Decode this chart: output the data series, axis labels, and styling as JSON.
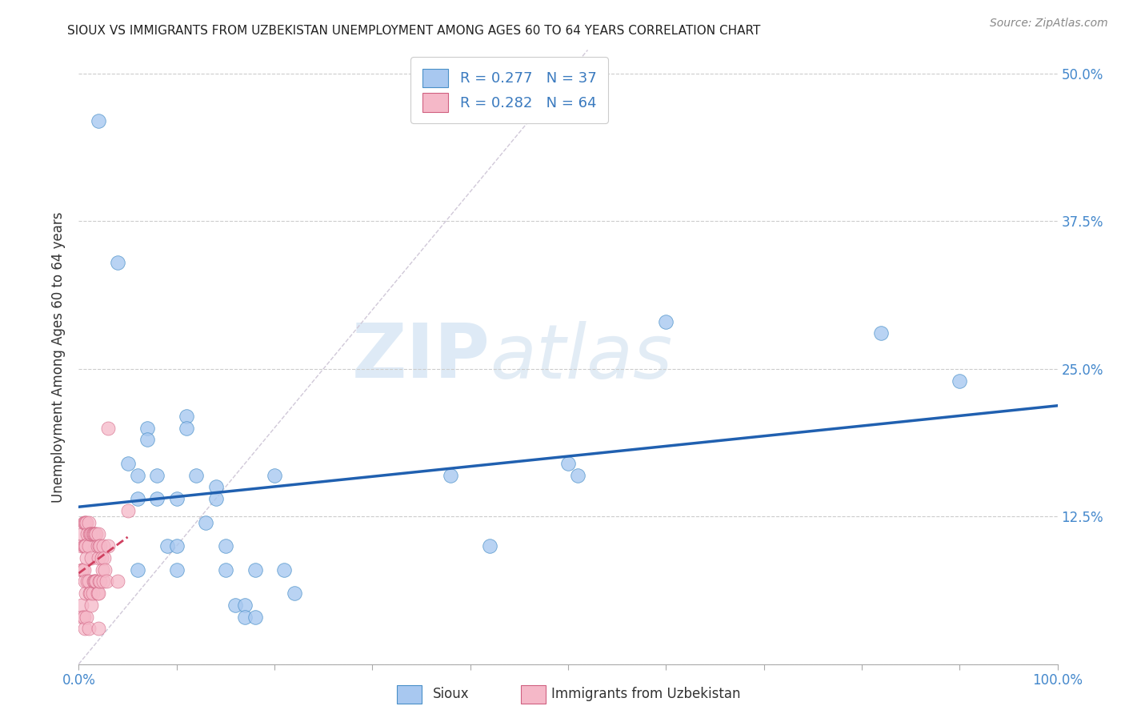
{
  "title": "SIOUX VS IMMIGRANTS FROM UZBEKISTAN UNEMPLOYMENT AMONG AGES 60 TO 64 YEARS CORRELATION CHART",
  "source": "Source: ZipAtlas.com",
  "ylabel": "Unemployment Among Ages 60 to 64 years",
  "xlim": [
    0.0,
    1.0
  ],
  "ylim": [
    0.0,
    0.52
  ],
  "xticks": [
    0.0,
    0.1,
    0.2,
    0.3,
    0.4,
    0.5,
    0.6,
    0.7,
    0.8,
    0.9,
    1.0
  ],
  "xticklabels": [
    "0.0%",
    "",
    "",
    "",
    "",
    "",
    "",
    "",
    "",
    "",
    "100.0%"
  ],
  "yticks": [
    0.0,
    0.125,
    0.25,
    0.375,
    0.5
  ],
  "yticklabels": [
    "",
    "12.5%",
    "25.0%",
    "37.5%",
    "50.0%"
  ],
  "color_sioux": "#a8c8f0",
  "color_uzbek": "#f5b8c8",
  "color_edge_sioux": "#4a90c8",
  "color_edge_uzbek": "#d06080",
  "color_line_sioux": "#2060b0",
  "color_line_uzbek": "#d04060",
  "color_diag": "#d0c8d8",
  "watermark_zip": "ZIP",
  "watermark_atlas": "atlas",
  "sioux_x": [
    0.02,
    0.04,
    0.05,
    0.06,
    0.06,
    0.06,
    0.07,
    0.07,
    0.08,
    0.08,
    0.09,
    0.1,
    0.1,
    0.1,
    0.11,
    0.11,
    0.12,
    0.13,
    0.14,
    0.14,
    0.15,
    0.15,
    0.16,
    0.17,
    0.17,
    0.18,
    0.18,
    0.2,
    0.21,
    0.22,
    0.38,
    0.42,
    0.5,
    0.51,
    0.6,
    0.82,
    0.9
  ],
  "sioux_y": [
    0.46,
    0.34,
    0.17,
    0.16,
    0.14,
    0.08,
    0.2,
    0.19,
    0.16,
    0.14,
    0.1,
    0.1,
    0.08,
    0.14,
    0.21,
    0.2,
    0.16,
    0.12,
    0.15,
    0.14,
    0.1,
    0.08,
    0.05,
    0.05,
    0.04,
    0.08,
    0.04,
    0.16,
    0.08,
    0.06,
    0.16,
    0.1,
    0.17,
    0.16,
    0.29,
    0.28,
    0.24
  ],
  "uzbek_x": [
    0.003,
    0.003,
    0.003,
    0.004,
    0.004,
    0.004,
    0.005,
    0.005,
    0.005,
    0.005,
    0.006,
    0.006,
    0.006,
    0.006,
    0.007,
    0.007,
    0.007,
    0.008,
    0.008,
    0.008,
    0.009,
    0.009,
    0.01,
    0.01,
    0.01,
    0.01,
    0.011,
    0.011,
    0.012,
    0.012,
    0.013,
    0.013,
    0.013,
    0.014,
    0.014,
    0.015,
    0.015,
    0.016,
    0.016,
    0.017,
    0.017,
    0.018,
    0.018,
    0.019,
    0.019,
    0.02,
    0.02,
    0.02,
    0.02,
    0.021,
    0.021,
    0.022,
    0.022,
    0.023,
    0.024,
    0.025,
    0.025,
    0.026,
    0.027,
    0.028,
    0.03,
    0.03,
    0.04,
    0.05
  ],
  "uzbek_y": [
    0.1,
    0.08,
    0.05,
    0.11,
    0.08,
    0.04,
    0.12,
    0.1,
    0.08,
    0.04,
    0.12,
    0.1,
    0.07,
    0.03,
    0.12,
    0.1,
    0.06,
    0.12,
    0.09,
    0.04,
    0.11,
    0.07,
    0.12,
    0.1,
    0.07,
    0.03,
    0.11,
    0.06,
    0.11,
    0.06,
    0.11,
    0.09,
    0.05,
    0.11,
    0.06,
    0.11,
    0.07,
    0.11,
    0.07,
    0.11,
    0.07,
    0.11,
    0.07,
    0.1,
    0.06,
    0.11,
    0.09,
    0.06,
    0.03,
    0.1,
    0.07,
    0.1,
    0.07,
    0.09,
    0.08,
    0.1,
    0.07,
    0.09,
    0.08,
    0.07,
    0.1,
    0.2,
    0.07,
    0.13
  ],
  "background_color": "#ffffff",
  "grid_color": "#cccccc"
}
